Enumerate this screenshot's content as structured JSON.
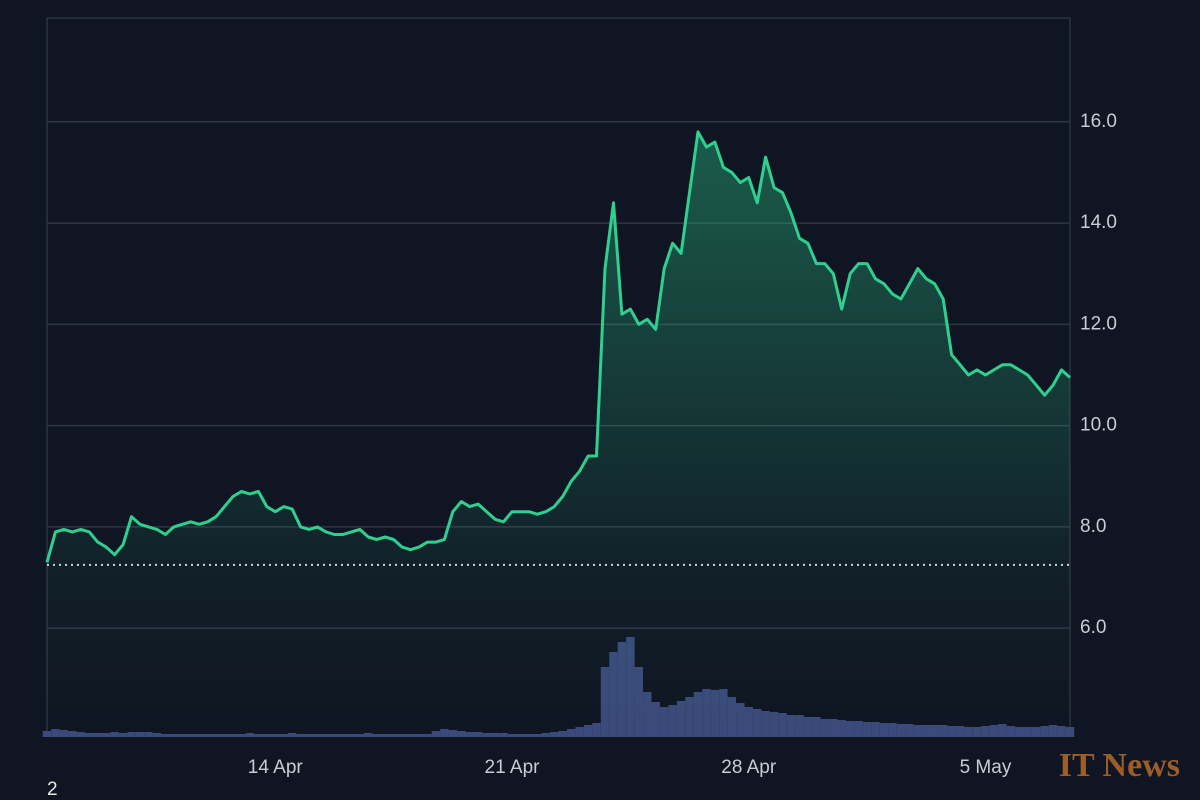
{
  "chart_data": {
    "type": "line",
    "categories": [
      null,
      null,
      null,
      null,
      null,
      null,
      null,
      null,
      null,
      null,
      null,
      null,
      null,
      null,
      null,
      null,
      null,
      null,
      null,
      null,
      null,
      null,
      null,
      null,
      null,
      null,
      null,
      "14 Apr",
      null,
      null,
      null,
      null,
      null,
      null,
      null,
      null,
      null,
      null,
      null,
      null,
      null,
      null,
      null,
      null,
      null,
      null,
      null,
      null,
      null,
      null,
      null,
      null,
      null,
      null,
      null,
      "21 Apr",
      null,
      null,
      null,
      null,
      null,
      null,
      null,
      null,
      null,
      null,
      null,
      null,
      null,
      null,
      null,
      null,
      null,
      null,
      null,
      null,
      null,
      null,
      null,
      null,
      null,
      null,
      null,
      "28 Apr",
      null,
      null,
      null,
      null,
      null,
      null,
      null,
      null,
      null,
      null,
      null,
      null,
      null,
      null,
      null,
      null,
      null,
      null,
      null,
      null,
      null,
      null,
      null,
      null,
      null,
      null,
      null,
      "5 May",
      null,
      null,
      null,
      null,
      null,
      null,
      null,
      null,
      null,
      null
    ],
    "series": [
      {
        "color": "#2fd08f",
        "values": [
          7.3,
          7.9,
          7.95,
          7.9,
          7.95,
          7.9,
          7.7,
          7.6,
          7.45,
          7.65,
          8.2,
          8.05,
          8.0,
          7.95,
          7.85,
          8.0,
          8.05,
          8.1,
          8.05,
          8.1,
          8.2,
          8.4,
          8.6,
          8.7,
          8.65,
          8.7,
          8.4,
          8.3,
          8.4,
          8.35,
          8.0,
          7.95,
          8.0,
          7.9,
          7.85,
          7.85,
          7.9,
          7.95,
          7.8,
          7.75,
          7.8,
          7.75,
          7.6,
          7.55,
          7.6,
          7.7,
          7.7,
          7.75,
          8.3,
          8.5,
          8.4,
          8.45,
          8.3,
          8.15,
          8.1,
          8.3,
          8.3,
          8.3,
          8.25,
          8.3,
          8.4,
          8.6,
          8.9,
          9.1,
          9.4,
          9.4,
          13.1,
          14.4,
          12.2,
          12.3,
          12.0,
          12.1,
          11.9,
          13.1,
          13.6,
          13.4,
          14.6,
          15.8,
          15.5,
          15.6,
          15.1,
          15.0,
          14.8,
          14.9,
          14.4,
          15.3,
          14.7,
          14.6,
          14.2,
          13.7,
          13.6,
          13.2,
          13.2,
          13.0,
          12.3,
          13.0,
          13.2,
          13.2,
          12.9,
          12.8,
          12.6,
          12.5,
          12.8,
          13.1,
          12.9,
          12.8,
          12.5,
          11.4,
          11.2,
          11.0,
          11.1,
          11.0,
          11.1,
          11.2,
          11.2,
          11.1,
          11.0,
          10.8,
          10.6,
          10.8,
          11.1,
          10.95
        ]
      }
    ],
    "volume": {
      "color": "#3a4a7a",
      "values": [
        6,
        8,
        7,
        6,
        5,
        4,
        4,
        4,
        5,
        4,
        5,
        5,
        5,
        4,
        3,
        3,
        3,
        3,
        3,
        3,
        3,
        3,
        3,
        3,
        4,
        3,
        3,
        3,
        3,
        4,
        3,
        3,
        3,
        3,
        3,
        3,
        3,
        3,
        4,
        3,
        3,
        3,
        3,
        3,
        3,
        3,
        6,
        8,
        7,
        6,
        5,
        5,
        4,
        4,
        4,
        3,
        3,
        3,
        3,
        4,
        5,
        6,
        8,
        10,
        12,
        14,
        70,
        85,
        95,
        100,
        70,
        45,
        35,
        30,
        32,
        36,
        40,
        45,
        48,
        47,
        48,
        40,
        34,
        30,
        28,
        26,
        25,
        24,
        22,
        22,
        20,
        20,
        18,
        18,
        17,
        16,
        16,
        15,
        15,
        14,
        14,
        13,
        13,
        12,
        12,
        12,
        12,
        11,
        11,
        10,
        10,
        11,
        12,
        13,
        11,
        10,
        10,
        10,
        11,
        12,
        11,
        10
      ]
    },
    "reference_line": 7.25,
    "ylim": [
      3.85,
      18.05
    ],
    "yticks": [
      {
        "value": 6,
        "label": "6.0"
      },
      {
        "value": 8,
        "label": "8.0"
      },
      {
        "value": 10,
        "label": "10.0"
      },
      {
        "value": 12,
        "label": "12.0"
      },
      {
        "value": 14,
        "label": "14.0"
      },
      {
        "value": 16,
        "label": "16.0"
      }
    ],
    "grid": true,
    "watermark": "IT News",
    "footnote": "2"
  }
}
